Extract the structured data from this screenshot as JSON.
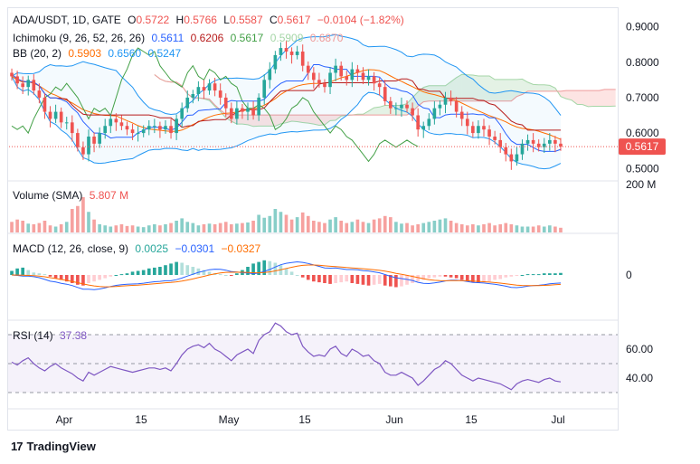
{
  "header": {
    "symbol_line": "ADA/USDT, 1D, GATE",
    "open_label": "O",
    "open": "0.5722",
    "high_label": "H",
    "high": "0.5766",
    "low_label": "L",
    "low": "0.5587",
    "close_label": "C",
    "close": "0.5617",
    "change": "−0.0104 (−1.82%)"
  },
  "ichimoku": {
    "label": "Ichimoku (9, 26, 52, 26, 26)",
    "v1": "0.5611",
    "v2": "0.6206",
    "v3": "0.5617",
    "v4": "0.5909",
    "v5": "0.6870"
  },
  "bb": {
    "label": "BB (20, 2)",
    "v1": "0.5903",
    "v2": "0.6560",
    "v3": "0.5247"
  },
  "volume": {
    "label": "Volume (SMA)",
    "value": "5.807 M",
    "scale": "200 M"
  },
  "macd": {
    "label": "MACD (12, 26, close, 9)",
    "v1": "0.0025",
    "v2": "−0.0301",
    "v3": "−0.0327",
    "zero": "0"
  },
  "rsi": {
    "label": "RSI (14)",
    "value": "37.38",
    "ticks": [
      "60.00",
      "40.00"
    ]
  },
  "price_axis": {
    "ticks": [
      "0.9000",
      "0.8000",
      "0.7000",
      "0.6000",
      "0.5000"
    ],
    "last": "0.5617"
  },
  "time_axis": {
    "labels": [
      "Apr",
      "15",
      "May",
      "15",
      "Jun",
      "15",
      "Jul"
    ]
  },
  "brand": {
    "logo": "17",
    "name": "TradingView"
  },
  "colors": {
    "up": "#26a69a",
    "down": "#ef5350",
    "tenkan": "#2962ff",
    "kijun": "#b71c1c",
    "lagging": "#43a047",
    "bb_basis": "#ff6d00",
    "bb_band": "#2196f3",
    "macd": "#2962ff",
    "signal": "#ff6d00",
    "rsi": "#7e57c2"
  },
  "chart_data": {
    "type": "candlestick",
    "ylim": [
      0.47,
      0.95
    ],
    "closes": [
      0.76,
      0.74,
      0.73,
      0.75,
      0.72,
      0.7,
      0.66,
      0.64,
      0.66,
      0.63,
      0.63,
      0.6,
      0.56,
      0.54,
      0.59,
      0.57,
      0.6,
      0.62,
      0.64,
      0.63,
      0.62,
      0.61,
      0.6,
      0.6,
      0.61,
      0.62,
      0.62,
      0.61,
      0.62,
      0.6,
      0.64,
      0.67,
      0.7,
      0.71,
      0.73,
      0.72,
      0.74,
      0.72,
      0.7,
      0.67,
      0.64,
      0.67,
      0.66,
      0.67,
      0.65,
      0.7,
      0.75,
      0.78,
      0.82,
      0.84,
      0.83,
      0.82,
      0.83,
      0.79,
      0.77,
      0.75,
      0.74,
      0.73,
      0.77,
      0.79,
      0.76,
      0.75,
      0.78,
      0.77,
      0.75,
      0.76,
      0.74,
      0.73,
      0.69,
      0.67,
      0.67,
      0.68,
      0.67,
      0.65,
      0.61,
      0.62,
      0.64,
      0.67,
      0.68,
      0.7,
      0.69,
      0.66,
      0.64,
      0.62,
      0.6,
      0.62,
      0.61,
      0.59,
      0.58,
      0.56,
      0.54,
      0.52,
      0.54,
      0.57,
      0.58,
      0.57,
      0.56,
      0.57,
      0.58,
      0.57,
      0.5617
    ],
    "volume": [
      18,
      22,
      20,
      15,
      14,
      16,
      20,
      12,
      10,
      14,
      18,
      40,
      45,
      60,
      35,
      22,
      14,
      12,
      10,
      12,
      14,
      11,
      12,
      10,
      9,
      12,
      14,
      12,
      14,
      16,
      20,
      24,
      18,
      16,
      12,
      14,
      15,
      14,
      16,
      18,
      14,
      15,
      16,
      17,
      20,
      30,
      25,
      28,
      40,
      35,
      30,
      22,
      26,
      34,
      28,
      20,
      18,
      16,
      22,
      26,
      20,
      16,
      18,
      22,
      18,
      16,
      22,
      24,
      28,
      26,
      18,
      15,
      16,
      12,
      14,
      16,
      18,
      20,
      22,
      24,
      20,
      16,
      14,
      12,
      14,
      12,
      14,
      16,
      12,
      14,
      16,
      14,
      12,
      10,
      10,
      10,
      12,
      10,
      12,
      10,
      8
    ],
    "macd_hist": [
      0.005,
      0.008,
      0.009,
      0.006,
      0.003,
      0.002,
      0.001,
      -0.002,
      -0.004,
      -0.006,
      -0.008,
      -0.01,
      -0.012,
      -0.013,
      -0.01,
      -0.008,
      -0.006,
      -0.004,
      -0.002,
      0.0,
      0.001,
      0.002,
      0.004,
      0.005,
      0.006,
      0.008,
      0.009,
      0.01,
      0.012,
      0.014,
      0.016,
      0.015,
      0.012,
      0.01,
      0.008,
      0.006,
      0.004,
      0.002,
      0.001,
      0.0,
      -0.001,
      0.002,
      0.006,
      0.01,
      0.014,
      0.016,
      0.018,
      0.017,
      0.015,
      0.012,
      0.008,
      0.004,
      0.0,
      -0.003,
      -0.006,
      -0.008,
      -0.009,
      -0.01,
      -0.011,
      -0.01,
      -0.009,
      -0.008,
      -0.01,
      -0.011,
      -0.012,
      -0.013,
      -0.012,
      -0.011,
      -0.013,
      -0.014,
      -0.015,
      -0.014,
      -0.012,
      -0.01,
      -0.008,
      -0.006,
      -0.004,
      -0.003,
      -0.002,
      -0.002,
      -0.003,
      -0.004,
      -0.006,
      -0.008,
      -0.009,
      -0.01,
      -0.009,
      -0.008,
      -0.006,
      -0.005,
      -0.003,
      -0.002,
      -0.001,
      0.0,
      0.001,
      0.001,
      0.001,
      0.002,
      0.002,
      0.002,
      0.0025
    ],
    "rsi": [
      51,
      49,
      52,
      54,
      50,
      47,
      45,
      48,
      50,
      47,
      45,
      43,
      40,
      38,
      44,
      42,
      44,
      46,
      48,
      47,
      46,
      45,
      44,
      45,
      46,
      47,
      47,
      46,
      47,
      45,
      50,
      56,
      60,
      62,
      63,
      61,
      64,
      60,
      58,
      55,
      52,
      56,
      58,
      60,
      57,
      66,
      70,
      72,
      78,
      76,
      72,
      70,
      71,
      62,
      58,
      55,
      56,
      55,
      60,
      62,
      57,
      55,
      60,
      58,
      55,
      56,
      52,
      50,
      44,
      42,
      42,
      44,
      42,
      40,
      35,
      38,
      42,
      46,
      48,
      52,
      50,
      46,
      42,
      40,
      38,
      40,
      39,
      38,
      37,
      36,
      34,
      32,
      36,
      38,
      39,
      38,
      37,
      39,
      40,
      38,
      37.38
    ]
  }
}
